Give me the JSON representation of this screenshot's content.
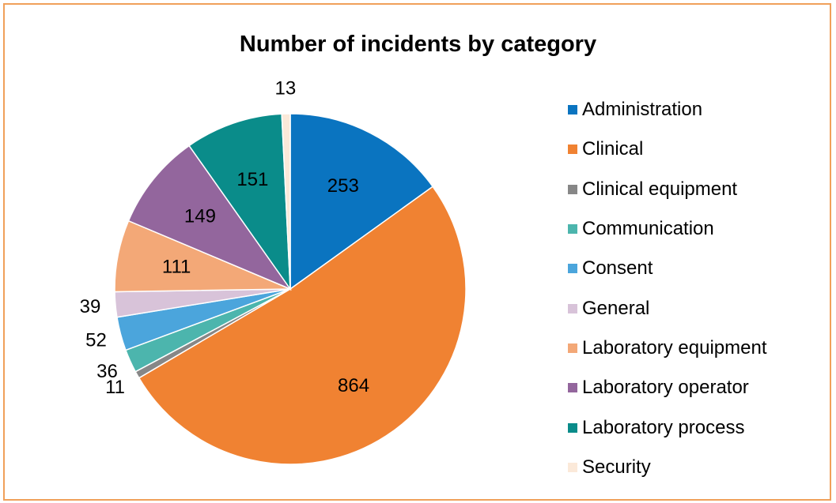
{
  "chart_data": {
    "type": "pie",
    "title": "Number of incidents by category",
    "categories": [
      "Administration",
      "Clinical",
      "Clinical equipment",
      "Communication",
      "Consent",
      "General",
      "Laboratory equipment",
      "Laboratory operator",
      "Laboratory process",
      "Security"
    ],
    "values": [
      253,
      864,
      11,
      36,
      52,
      39,
      111,
      149,
      151,
      13
    ],
    "colors": [
      "#0a74c0",
      "#f08232",
      "#878787",
      "#4cb5ad",
      "#4ba5dc",
      "#d8c3d9",
      "#f3a877",
      "#93669d",
      "#0a8c8a",
      "#fbe9d9"
    ],
    "legend_position": "right",
    "data_labels": true
  }
}
